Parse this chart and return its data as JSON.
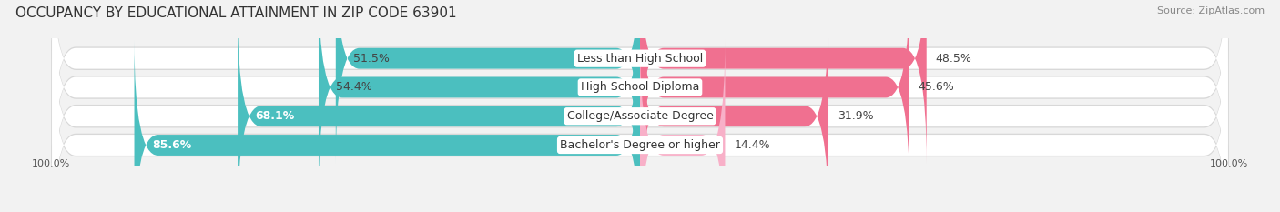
{
  "title": "OCCUPANCY BY EDUCATIONAL ATTAINMENT IN ZIP CODE 63901",
  "source": "Source: ZipAtlas.com",
  "categories": [
    "Less than High School",
    "High School Diploma",
    "College/Associate Degree",
    "Bachelor's Degree or higher"
  ],
  "owner_pct": [
    51.5,
    54.4,
    68.1,
    85.6
  ],
  "renter_pct": [
    48.5,
    45.6,
    31.9,
    14.4
  ],
  "owner_color": "#4BBFBF",
  "renter_color": "#F07090",
  "renter_color_light": "#F8B8C8",
  "bg_color": "#f2f2f2",
  "row_bg_color": "#ffffff",
  "row_border_color": "#d8d8d8",
  "title_fontsize": 11,
  "source_fontsize": 8,
  "pct_fontsize": 9,
  "cat_fontsize": 9,
  "axis_label_left": "100.0%",
  "axis_label_right": "100.0%"
}
